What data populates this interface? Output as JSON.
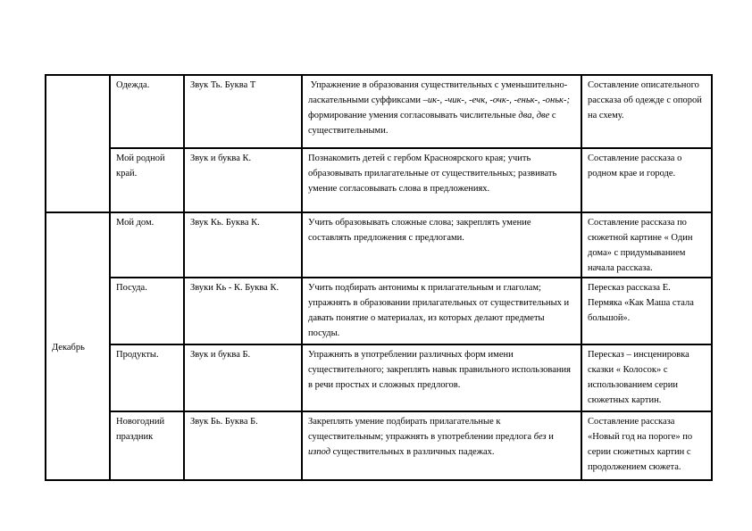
{
  "rows": [
    {
      "month": "",
      "topic": "Одежда.",
      "sound": "Звук Ть. Буква Т",
      "goals_parts": [
        "Упражнение в образования существительных с уменьшительно- ласкательными суффиксами ",
        "–ик-, -чик-, -ечк, -очк-, -еньк-, -оньк-;",
        " формирование умения согласовывать числительные ",
        "два, две",
        " с существительными."
      ],
      "speech": "Составление описательного рассказа об одежде с опорой на схему."
    },
    {
      "month": "",
      "topic": "Мой родной край.",
      "sound": "Звук и буква К.",
      "goals": "Познакомить детей с гербом Красноярского края; учить образовывать прилагательные от существительных; развивать умение согласовывать слова в предложениях.",
      "speech": "Составление рассказа о родном крае и городе."
    },
    {
      "month": "Декабрь",
      "topic": "Мой дом.",
      "sound": "Звук Кь. Буква К.",
      "goals": "Учить образовывать сложные слова; закреплять умение составлять предложения с предлогами.",
      "speech": "Составление   рассказа по сюжетной картине « Один дома» с придумыванием начала рассказа."
    },
    {
      "topic": "Посуда.",
      "sound": "Звуки Кь - К. Буква К.",
      "goals": "Учить подбирать антонимы к прилагательным и глаголам; упражнять в образовании прилагательных от существительных и давать понятие о материалах, из которых делают предметы посуды.",
      "speech": "Пересказ рассказа Е. Пермяка «Как Маша стала большой»."
    },
    {
      "topic": "Продукты.",
      "sound": "Звук и буква Б.",
      "goals": "Упражнять в употреблении различных форм имени существительного; закреплять навык правильного использования в речи простых и сложных предлогов.",
      "speech": "Пересказ – инсценировка сказки « Колосок» с использованием серии сюжетных картин."
    },
    {
      "topic": "Новогодний праздник",
      "sound": "Звук Бь. Буква Б.",
      "goals_parts": [
        "Закреплять умение подбирать прилагательные к существительным; упражнять в употреблении предлога ",
        "без",
        " и ",
        "изпод",
        " существительных в различных падежах."
      ],
      "speech": "Составление рассказа «Новый год на пороге» по серии сюжетных картин с продолжением сюжета."
    }
  ]
}
